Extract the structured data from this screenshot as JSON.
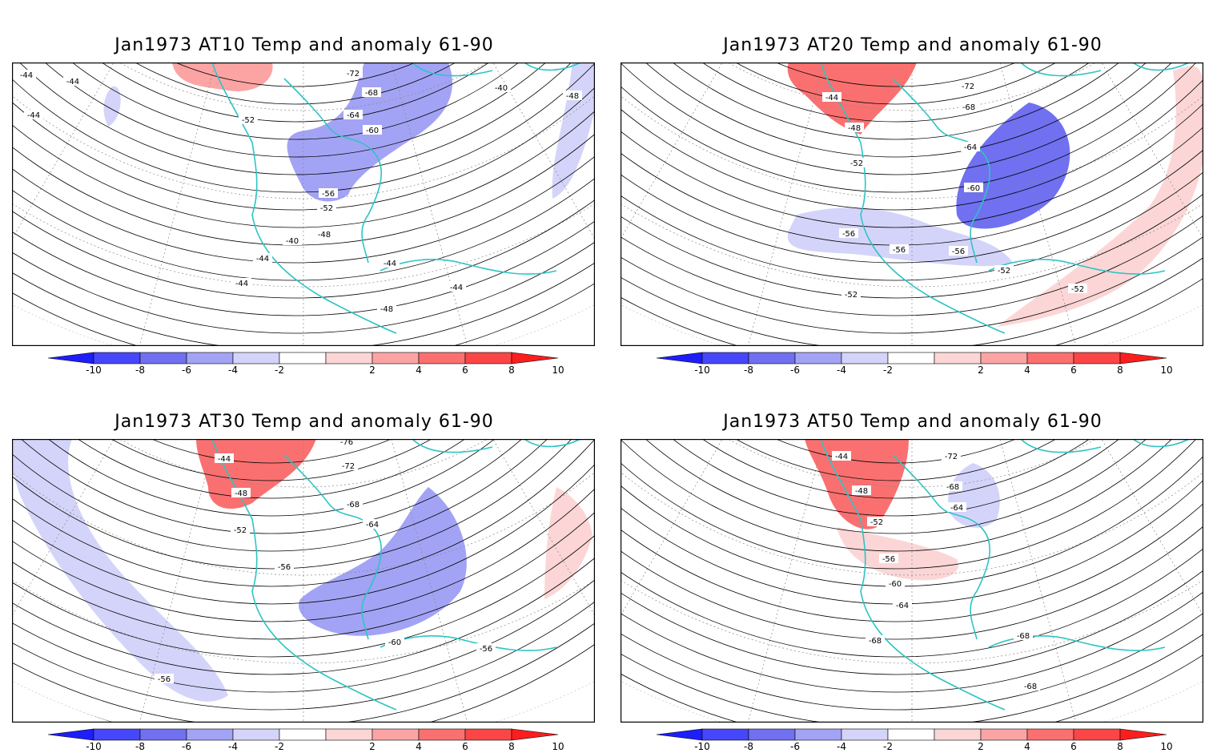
{
  "panels": [
    {
      "title": "Jan1973 AT10 Temp and anomaly 61-90",
      "contour_labels": [
        "-44",
        "-44",
        "-44",
        "-52",
        "-72",
        "-68",
        "-64",
        "-60",
        "-40",
        "-48",
        "-56",
        "-52",
        "-48",
        "-40",
        "-44",
        "-44",
        "-44",
        "-44",
        "-48"
      ],
      "anomaly_regions": [
        {
          "sign": "warm",
          "level": 4
        },
        {
          "sign": "cold",
          "level": 4
        },
        {
          "sign": "cold",
          "level": 2
        },
        {
          "sign": "cold",
          "level": 2
        }
      ]
    },
    {
      "title": "Jan1973 AT20 Temp and anomaly 61-90",
      "contour_labels": [
        "-44",
        "-72",
        "-68",
        "-48",
        "-64",
        "-52",
        "-60",
        "-56",
        "-56",
        "-56",
        "-52",
        "-52",
        "-52"
      ],
      "anomaly_regions": [
        {
          "sign": "warm",
          "level": 6
        },
        {
          "sign": "cold",
          "level": 6
        },
        {
          "sign": "cold",
          "level": 2
        },
        {
          "sign": "warm",
          "level": 2
        }
      ]
    },
    {
      "title": "Jan1973 AT30 Temp and anomaly 61-90",
      "contour_labels": [
        "-44",
        "-76",
        "-72",
        "-48",
        "-68",
        "-52",
        "-64",
        "-56",
        "-60",
        "-56",
        "-56"
      ],
      "anomaly_regions": [
        {
          "sign": "warm",
          "level": 6
        },
        {
          "sign": "cold",
          "level": 4
        },
        {
          "sign": "cold",
          "level": 2
        },
        {
          "sign": "warm",
          "level": 2
        }
      ]
    },
    {
      "title": "Jan1973 AT50 Temp and anomaly 61-90",
      "contour_labels": [
        "-44",
        "-72",
        "-48",
        "-68",
        "-64",
        "-52",
        "-56",
        "-60",
        "-64",
        "-68",
        "-68",
        "-68"
      ],
      "anomaly_regions": [
        {
          "sign": "warm",
          "level": 6
        },
        {
          "sign": "cold",
          "level": 2
        },
        {
          "sign": "warm",
          "level": 2
        }
      ]
    }
  ],
  "colorbar": {
    "tick_labels": [
      "-10",
      "-8",
      "-6",
      "-4",
      "-2",
      "2",
      "4",
      "6",
      "8",
      "10"
    ],
    "colors": [
      "#1e1efa",
      "#4646fa",
      "#7070f0",
      "#a3a3f5",
      "#d4d4fa",
      "#ffffff",
      "#fcd6d6",
      "#fca4a4",
      "#fa7070",
      "#fa4646",
      "#fa1e1e"
    ]
  },
  "coast_color": "#2ec4c4"
}
